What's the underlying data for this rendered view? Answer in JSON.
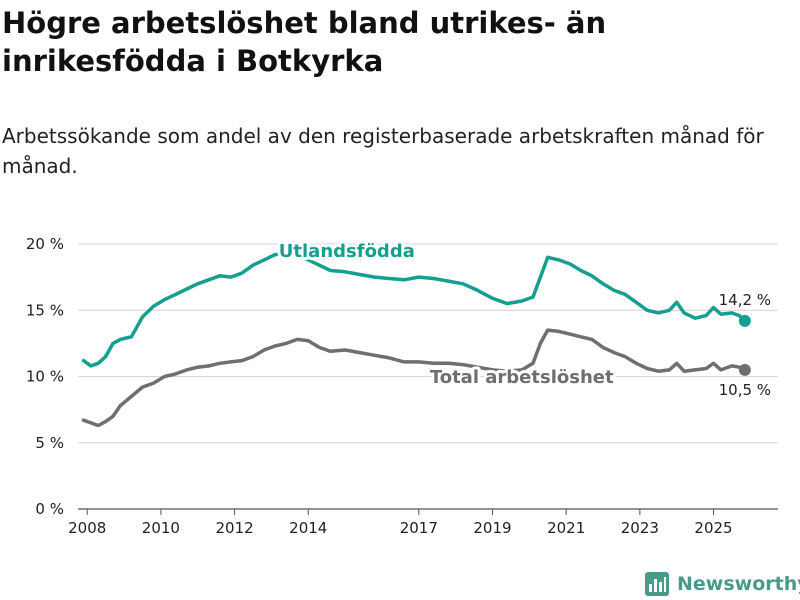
{
  "title": "Högre arbetslöshet bland utrikes- än inrikesfödda i Botkyrka",
  "subtitle": "Arbetssökande som andel av den registerbaserade arbetskraften månad för månad.",
  "brand": {
    "name": "Newsworthy",
    "icon": "bar-chart-logo-icon",
    "color": "#4a9a8c"
  },
  "chart_data": {
    "type": "line",
    "title": "Högre arbetslöshet bland utrikes- än inrikesfödda i Botkyrka",
    "xlabel": "",
    "ylabel": "",
    "xlim": [
      2007.75,
      2026.75
    ],
    "ylim": [
      0,
      20
    ],
    "y_ticks": [
      0,
      5,
      10,
      15,
      20
    ],
    "y_tick_labels": [
      "0 %",
      "5 %",
      "10 %",
      "15 %",
      "20 %"
    ],
    "x_ticks": [
      2008,
      2010,
      2012,
      2014,
      2017,
      2019,
      2021,
      2023,
      2025
    ],
    "x_tick_labels": [
      "2008",
      "2010",
      "2012",
      "2014",
      "2017",
      "2019",
      "2021",
      "2023",
      "2025"
    ],
    "grid": true,
    "series": [
      {
        "name": "Utlandsfödda",
        "color": "#169e8e",
        "end_label": "14,2 %",
        "points": [
          [
            2007.9,
            11.2
          ],
          [
            2008.1,
            10.8
          ],
          [
            2008.3,
            11.0
          ],
          [
            2008.5,
            11.5
          ],
          [
            2008.7,
            12.5
          ],
          [
            2008.9,
            12.8
          ],
          [
            2009.2,
            13.0
          ],
          [
            2009.5,
            14.5
          ],
          [
            2009.8,
            15.3
          ],
          [
            2010.1,
            15.8
          ],
          [
            2010.4,
            16.2
          ],
          [
            2010.7,
            16.6
          ],
          [
            2011.0,
            17.0
          ],
          [
            2011.3,
            17.3
          ],
          [
            2011.6,
            17.6
          ],
          [
            2011.9,
            17.5
          ],
          [
            2012.2,
            17.8
          ],
          [
            2012.5,
            18.4
          ],
          [
            2012.8,
            18.8
          ],
          [
            2013.1,
            19.2
          ],
          [
            2013.4,
            19.3
          ],
          [
            2013.7,
            19.2
          ],
          [
            2014.0,
            18.8
          ],
          [
            2014.3,
            18.4
          ],
          [
            2014.6,
            18.0
          ],
          [
            2015.0,
            17.9
          ],
          [
            2015.4,
            17.7
          ],
          [
            2015.8,
            17.5
          ],
          [
            2016.2,
            17.4
          ],
          [
            2016.6,
            17.3
          ],
          [
            2017.0,
            17.5
          ],
          [
            2017.4,
            17.4
          ],
          [
            2017.8,
            17.2
          ],
          [
            2018.2,
            17.0
          ],
          [
            2018.6,
            16.5
          ],
          [
            2019.0,
            15.9
          ],
          [
            2019.4,
            15.5
          ],
          [
            2019.8,
            15.7
          ],
          [
            2020.1,
            16.0
          ],
          [
            2020.3,
            17.5
          ],
          [
            2020.5,
            19.0
          ],
          [
            2020.8,
            18.8
          ],
          [
            2021.1,
            18.5
          ],
          [
            2021.4,
            18.0
          ],
          [
            2021.7,
            17.6
          ],
          [
            2022.0,
            17.0
          ],
          [
            2022.3,
            16.5
          ],
          [
            2022.6,
            16.2
          ],
          [
            2022.9,
            15.6
          ],
          [
            2023.2,
            15.0
          ],
          [
            2023.5,
            14.8
          ],
          [
            2023.8,
            15.0
          ],
          [
            2024.0,
            15.6
          ],
          [
            2024.2,
            14.8
          ],
          [
            2024.5,
            14.4
          ],
          [
            2024.8,
            14.6
          ],
          [
            2025.0,
            15.2
          ],
          [
            2025.2,
            14.7
          ],
          [
            2025.5,
            14.8
          ],
          [
            2025.7,
            14.6
          ],
          [
            2025.85,
            14.2
          ]
        ]
      },
      {
        "name": "Total arbetslöshet",
        "color": "#6e6e73",
        "end_label": "10,5 %",
        "points": [
          [
            2007.9,
            6.7
          ],
          [
            2008.1,
            6.5
          ],
          [
            2008.3,
            6.3
          ],
          [
            2008.5,
            6.6
          ],
          [
            2008.7,
            7.0
          ],
          [
            2008.9,
            7.8
          ],
          [
            2009.2,
            8.5
          ],
          [
            2009.5,
            9.2
          ],
          [
            2009.8,
            9.5
          ],
          [
            2010.1,
            10.0
          ],
          [
            2010.4,
            10.2
          ],
          [
            2010.7,
            10.5
          ],
          [
            2011.0,
            10.7
          ],
          [
            2011.3,
            10.8
          ],
          [
            2011.6,
            11.0
          ],
          [
            2011.9,
            11.1
          ],
          [
            2012.2,
            11.2
          ],
          [
            2012.5,
            11.5
          ],
          [
            2012.8,
            12.0
          ],
          [
            2013.1,
            12.3
          ],
          [
            2013.4,
            12.5
          ],
          [
            2013.7,
            12.8
          ],
          [
            2014.0,
            12.7
          ],
          [
            2014.3,
            12.2
          ],
          [
            2014.6,
            11.9
          ],
          [
            2015.0,
            12.0
          ],
          [
            2015.4,
            11.8
          ],
          [
            2015.8,
            11.6
          ],
          [
            2016.2,
            11.4
          ],
          [
            2016.6,
            11.1
          ],
          [
            2017.0,
            11.1
          ],
          [
            2017.4,
            11.0
          ],
          [
            2017.8,
            11.0
          ],
          [
            2018.2,
            10.9
          ],
          [
            2018.6,
            10.7
          ],
          [
            2019.0,
            10.5
          ],
          [
            2019.4,
            10.4
          ],
          [
            2019.8,
            10.5
          ],
          [
            2020.1,
            11.0
          ],
          [
            2020.3,
            12.5
          ],
          [
            2020.5,
            13.5
          ],
          [
            2020.8,
            13.4
          ],
          [
            2021.1,
            13.2
          ],
          [
            2021.4,
            13.0
          ],
          [
            2021.7,
            12.8
          ],
          [
            2022.0,
            12.2
          ],
          [
            2022.3,
            11.8
          ],
          [
            2022.6,
            11.5
          ],
          [
            2022.9,
            11.0
          ],
          [
            2023.2,
            10.6
          ],
          [
            2023.5,
            10.4
          ],
          [
            2023.8,
            10.5
          ],
          [
            2024.0,
            11.0
          ],
          [
            2024.2,
            10.4
          ],
          [
            2024.5,
            10.5
          ],
          [
            2024.8,
            10.6
          ],
          [
            2025.0,
            11.0
          ],
          [
            2025.2,
            10.5
          ],
          [
            2025.5,
            10.8
          ],
          [
            2025.7,
            10.7
          ],
          [
            2025.85,
            10.5
          ]
        ]
      }
    ],
    "annotations": [
      {
        "text": "Utlandsfödda",
        "series": "Utlandsfödda",
        "anchor": [
          2013.2,
          20.0
        ]
      },
      {
        "text": "Total arbetslöshet",
        "series": "Total arbetslöshet",
        "anchor": [
          2017.3,
          10.5
        ]
      }
    ]
  }
}
